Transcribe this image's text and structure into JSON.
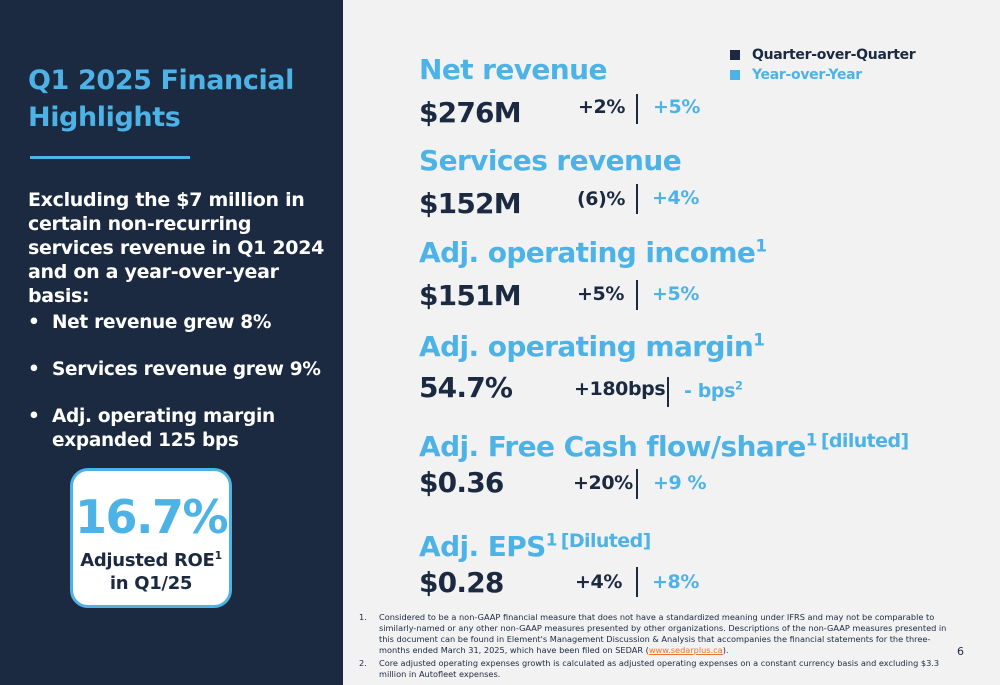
{
  "left": {
    "title": "Q1 2025 Financial Highlights",
    "intro": "Excluding the $7 million in certain non-recurring services revenue in Q1 2024 and on a year-over-year basis:",
    "bullets": [
      "Net revenue grew 8%",
      "Services revenue grew 9%",
      "Adj. operating margin expanded 125 bps"
    ],
    "roe": {
      "value": "16.7%",
      "label": "Adjusted ROE",
      "label_sup": "1",
      "period": "in Q1/25"
    }
  },
  "legend": {
    "items": [
      {
        "label": "Quarter-over-Quarter",
        "color": "#1b2a41"
      },
      {
        "label": "Year-over-Year",
        "color": "#4db3e6"
      }
    ]
  },
  "metrics": [
    {
      "title": "Net revenue",
      "title_sup": "",
      "bracket": "",
      "value": "$276M",
      "qoq": "+2%",
      "yoy": "+5%",
      "yoy_sup": ""
    },
    {
      "title": "Services revenue",
      "title_sup": "",
      "bracket": "",
      "value": "$152M",
      "qoq": "(6)%",
      "yoy": "+4%",
      "yoy_sup": ""
    },
    {
      "title": "Adj. operating income",
      "title_sup": "1",
      "bracket": "",
      "value": "$151M",
      "qoq": "+5%",
      "yoy": "+5%",
      "yoy_sup": ""
    },
    {
      "title": "Adj. operating margin",
      "title_sup": "1",
      "bracket": "",
      "value": "54.7%",
      "qoq": "+180bps",
      "yoy": "- bps",
      "yoy_sup": "2"
    },
    {
      "title": "Adj. Free Cash flow/share",
      "title_sup": "1",
      "bracket": "[diluted]",
      "value": "$0.36",
      "qoq": "+20%",
      "yoy": "+9 %",
      "yoy_sup": ""
    },
    {
      "title": "Adj. EPS",
      "title_sup": "1",
      "bracket": "[Diluted]",
      "value": "$0.28",
      "qoq": "+4%",
      "yoy": "+8%",
      "yoy_sup": ""
    }
  ],
  "footnotes": {
    "n1": "1.",
    "f1_text": "Considered to be a non-GAAP financial measure that does not have a standardized meaning under IFRS and may not be comparable to similarly-named or any other non-GAAP measures presented by other organizations. Descriptions of the non-GAAP measures presented in this document can be found in Element's Management Discussion & Analysis that accompanies the financial statements for the three-months ended March 31, 2025, which have been filed on SEDAR (",
    "f1_link": "www.sedarplus.ca",
    "f1_end": ").",
    "n2": "2.",
    "f2_text": "Core adjusted operating expenses growth is calculated as adjusted operating expenses on a constant currency basis and excluding $3.3 million in Autofleet expenses."
  },
  "page_number": "6"
}
